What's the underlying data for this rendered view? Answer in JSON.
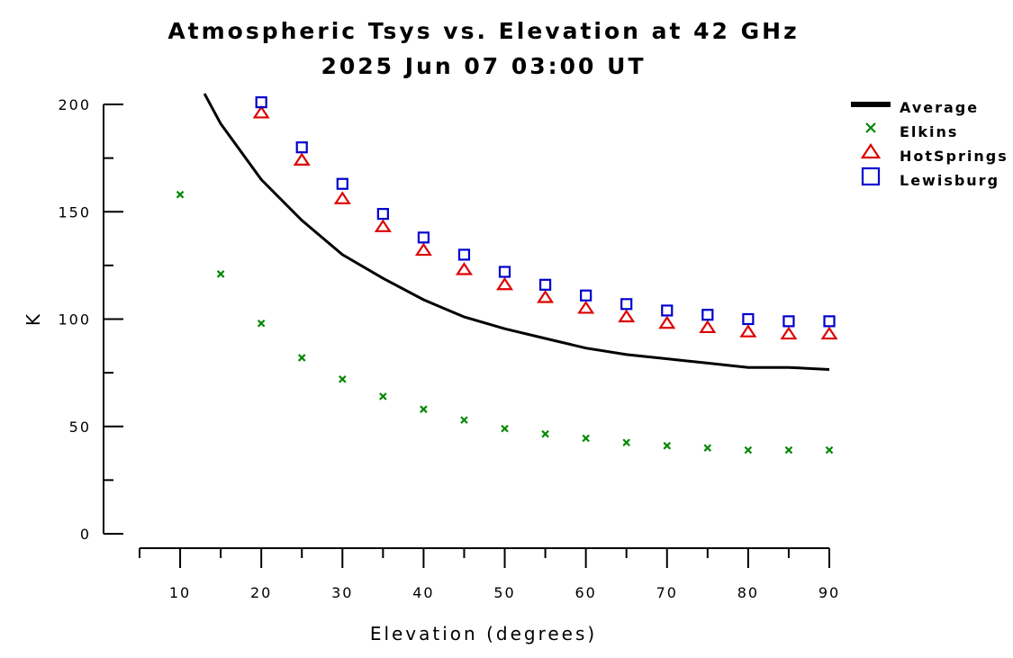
{
  "chart_data": {
    "type": "scatter",
    "title": "Atmospheric Tsys vs. Elevation at 42 GHz",
    "subtitle": "2025 Jun 07 03:00 UT",
    "xlabel": "Elevation (degrees)",
    "ylabel": "K",
    "xlim": [
      5,
      90
    ],
    "ylim": [
      0,
      200
    ],
    "x_ticks": [
      10,
      20,
      30,
      40,
      50,
      60,
      70,
      80,
      90
    ],
    "y_ticks": [
      0,
      50,
      100,
      150,
      200
    ],
    "legend_position": "top-right",
    "grid": false,
    "series": [
      {
        "name": "Average",
        "style": "line",
        "color": "#000000",
        "x": [
          13,
          15,
          20,
          25,
          30,
          35,
          40,
          45,
          50,
          55,
          60,
          65,
          70,
          75,
          80,
          85,
          90
        ],
        "y": [
          205,
          191,
          165,
          146,
          130,
          119,
          109,
          101,
          95.5,
          91,
          86.5,
          83.5,
          81.5,
          79.5,
          77.5,
          77.5,
          76.5
        ]
      },
      {
        "name": "Elkins",
        "style": "x",
        "color": "#008800",
        "x": [
          10,
          15,
          20,
          25,
          30,
          35,
          40,
          45,
          50,
          55,
          60,
          65,
          70,
          75,
          80,
          85,
          90
        ],
        "y": [
          158,
          121,
          98,
          82,
          72,
          64,
          58,
          53,
          49,
          46.5,
          44.5,
          42.5,
          41,
          40,
          39,
          39,
          39
        ]
      },
      {
        "name": "HotSprings",
        "style": "triangle",
        "color": "#dd0000",
        "x": [
          20,
          25,
          30,
          35,
          40,
          45,
          50,
          55,
          60,
          65,
          70,
          75,
          80,
          85,
          90
        ],
        "y": [
          196,
          174,
          156,
          143,
          132,
          123,
          116,
          110,
          105,
          101,
          98,
          96,
          94,
          93,
          93
        ]
      },
      {
        "name": "Lewisburg",
        "style": "square",
        "color": "#0000cc",
        "x": [
          20,
          25,
          30,
          35,
          40,
          45,
          50,
          55,
          60,
          65,
          70,
          75,
          80,
          85,
          90
        ],
        "y": [
          201,
          180,
          163,
          149,
          138,
          130,
          122,
          116,
          111,
          107,
          104,
          102,
          100,
          99,
          99
        ]
      }
    ]
  }
}
